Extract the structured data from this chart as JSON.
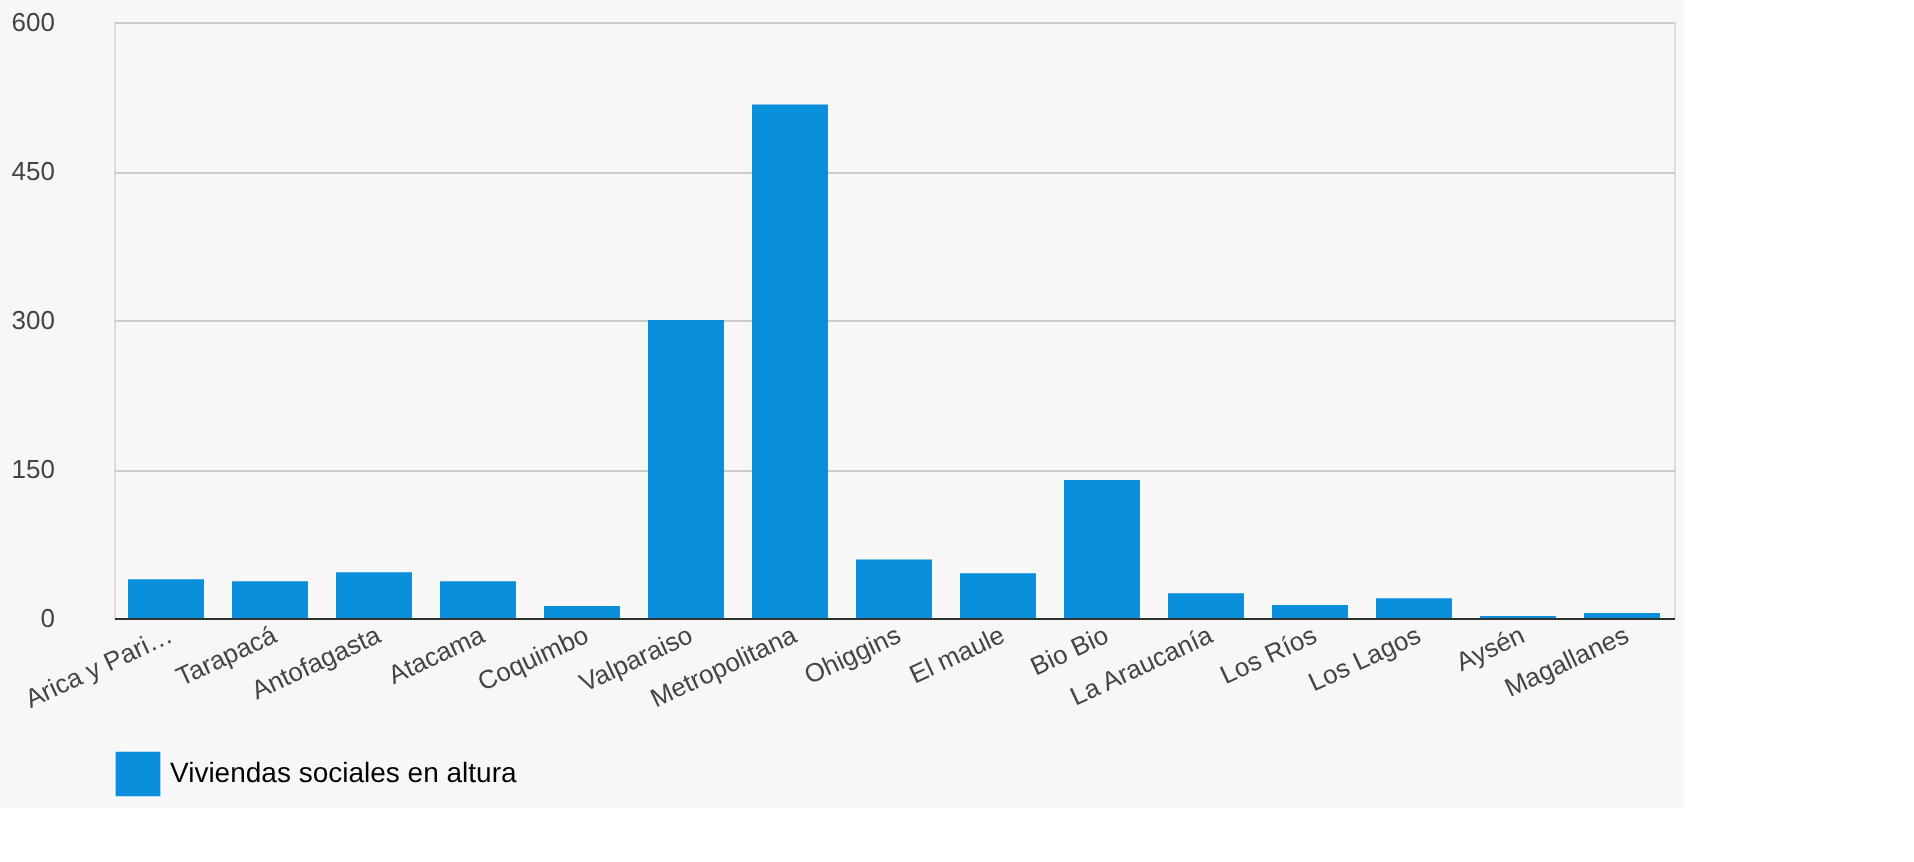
{
  "chart_data": {
    "type": "bar",
    "categories": [
      "Arica y Pari…",
      "Tarapacá",
      "Antofagasta",
      "Atacama",
      "Coquimbo",
      "Valparaiso",
      "Metropolitana",
      "Ohiggins",
      "El maule",
      "Bio Bio",
      "La Araucanía",
      "Los Ríos",
      "Los Lagos",
      "Aysén",
      "Magallanes"
    ],
    "series": [
      {
        "name": "Viviendas sociales en altura",
        "color": "#0a8fdc",
        "values": [
          39,
          37,
          46,
          37,
          12,
          300,
          517,
          59,
          45,
          139,
          25,
          13,
          20,
          2,
          5
        ]
      }
    ],
    "ylim": [
      0,
      600
    ],
    "yticks": [
      0,
      150,
      300,
      450,
      600
    ],
    "grid": "y",
    "legend": "bottom"
  }
}
